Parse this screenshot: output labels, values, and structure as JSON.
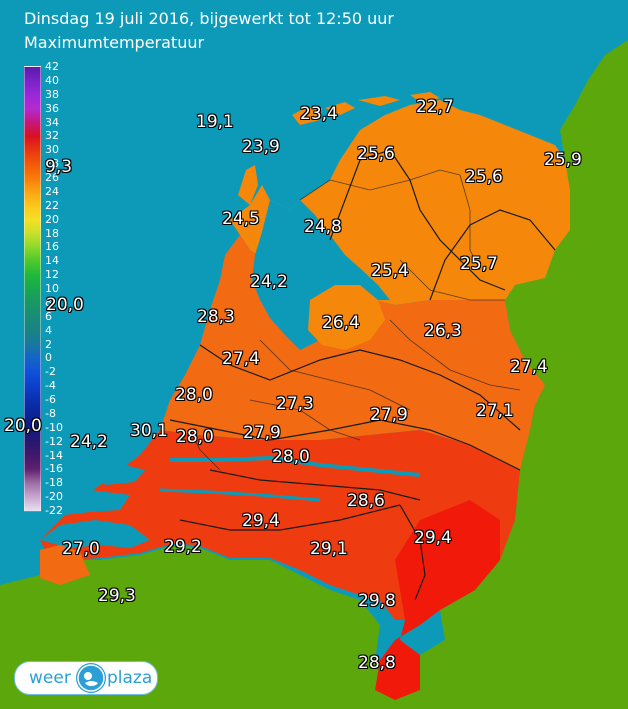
{
  "header": {
    "title": "Dinsdag 19 juli 2016, bijgewerkt tot 12:50 uur",
    "subtitle": "Maximumtemperatuur"
  },
  "legend": {
    "ticks": [
      "42",
      "40",
      "38",
      "36",
      "34",
      "32",
      "30",
      "28",
      "26",
      "24",
      "22",
      "20",
      "18",
      "16",
      "14",
      "12",
      "10",
      "8",
      "6",
      "4",
      "2",
      "0",
      "-2",
      "-4",
      "-6",
      "-8",
      "-10",
      "-12",
      "-14",
      "-16",
      "-18",
      "-20",
      "-22"
    ],
    "colors": [
      "#5a1aa8",
      "#7a22c8",
      "#9a28d8",
      "#b22ad0",
      "#c4187c",
      "#d81020",
      "#e83810",
      "#f25a08",
      "#f87c08",
      "#fca414",
      "#fcc81c",
      "#f4e024",
      "#c8e02c",
      "#8cd82c",
      "#4cc82c",
      "#20b83c",
      "#18a850",
      "#189864",
      "#188c78",
      "#188484",
      "#1878a0",
      "#1464c8",
      "#1050d8",
      "#0c40c8",
      "#0a30b0",
      "#0a2498",
      "#101c80",
      "#281870",
      "#40186c",
      "#602070",
      "#a070a8",
      "#c8a8d0",
      "#e8e0f0"
    ]
  },
  "temperatures": [
    {
      "value": "19,1"
    },
    {
      "value": "23,4"
    },
    {
      "value": "22,7"
    },
    {
      "value": "23,9"
    },
    {
      "value": "25,6"
    },
    {
      "value": "25,9"
    },
    {
      "value": "9,3"
    },
    {
      "value": "25,6"
    },
    {
      "value": "24,5"
    },
    {
      "value": "24,8"
    },
    {
      "value": "25,4"
    },
    {
      "value": "25,7"
    },
    {
      "value": "24,2"
    },
    {
      "value": "20,0"
    },
    {
      "value": "28,3"
    },
    {
      "value": "26,4"
    },
    {
      "value": "26,3"
    },
    {
      "value": "27,4"
    },
    {
      "value": "27,4"
    },
    {
      "value": "28,0"
    },
    {
      "value": "27,3"
    },
    {
      "value": "27,9"
    },
    {
      "value": "27,1"
    },
    {
      "value": "20,0"
    },
    {
      "value": "24,2"
    },
    {
      "value": "30,1"
    },
    {
      "value": "28,0"
    },
    {
      "value": "27,9"
    },
    {
      "value": "28,0"
    },
    {
      "value": "28,6"
    },
    {
      "value": "29,4"
    },
    {
      "value": "29,4"
    },
    {
      "value": "27,0"
    },
    {
      "value": "29,2"
    },
    {
      "value": "29,1"
    },
    {
      "value": "29,3"
    },
    {
      "value": "29,8"
    },
    {
      "value": "28,8"
    }
  ],
  "colors": {
    "sea": "#0d9ab8",
    "foreign_land": "#5ca80c",
    "nl_north": "#f5880a",
    "nl_middle": "#f26a12",
    "nl_south": "#ee3c10",
    "nl_far_south": "#f11a0a"
  },
  "logo": {
    "left": "weer",
    "right": "plaza",
    "icon": "weather-ball-icon"
  }
}
